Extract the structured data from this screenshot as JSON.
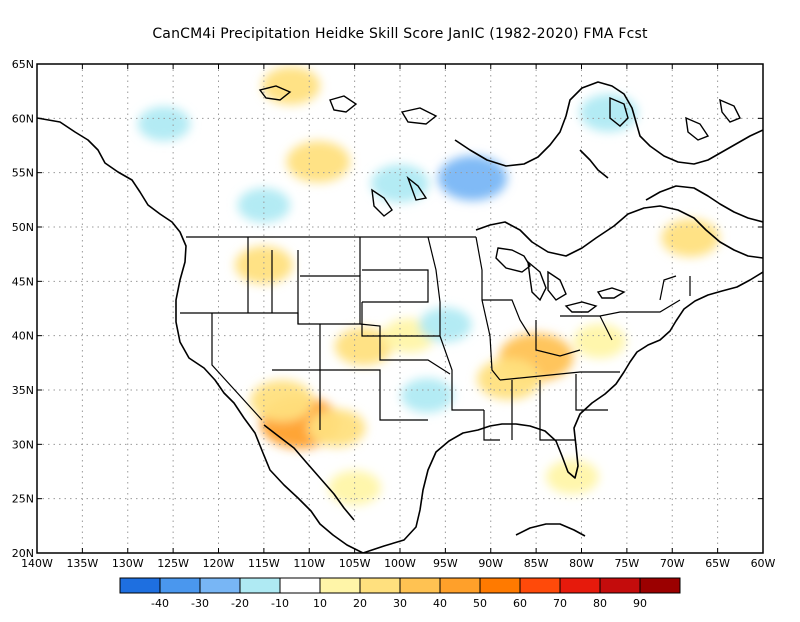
{
  "title": "CanCM4i  Precipitation Heidke Skill Score JanIC (1982-2020) FMA Fcst",
  "map": {
    "lat_range": [
      20,
      65
    ],
    "lon_range": [
      -140,
      -60
    ],
    "lat_ticks": [
      {
        "value": 65,
        "label": "65N"
      },
      {
        "value": 60,
        "label": "60N"
      },
      {
        "value": 55,
        "label": "55N"
      },
      {
        "value": 50,
        "label": "50N"
      },
      {
        "value": 45,
        "label": "45N"
      },
      {
        "value": 40,
        "label": "40N"
      },
      {
        "value": 35,
        "label": "35N"
      },
      {
        "value": 30,
        "label": "30N"
      },
      {
        "value": 25,
        "label": "25N"
      },
      {
        "value": 20,
        "label": "20N"
      }
    ],
    "lon_ticks": [
      {
        "value": -140,
        "label": "140W"
      },
      {
        "value": -135,
        "label": "135W"
      },
      {
        "value": -130,
        "label": "130W"
      },
      {
        "value": -125,
        "label": "125W"
      },
      {
        "value": -120,
        "label": "120W"
      },
      {
        "value": -115,
        "label": "115W"
      },
      {
        "value": -110,
        "label": "110W"
      },
      {
        "value": -105,
        "label": "105W"
      },
      {
        "value": -100,
        "label": "100W"
      },
      {
        "value": -95,
        "label": "95W"
      },
      {
        "value": -90,
        "label": "90W"
      },
      {
        "value": -85,
        "label": "85W"
      },
      {
        "value": -80,
        "label": "80W"
      },
      {
        "value": -75,
        "label": "75W"
      },
      {
        "value": -70,
        "label": "70W"
      },
      {
        "value": -65,
        "label": "65W"
      },
      {
        "value": -60,
        "label": "60W"
      }
    ],
    "grid": "dotted"
  },
  "colorbar": {
    "bins": [
      {
        "color": "#1e6fe0"
      },
      {
        "color": "#4a97ee"
      },
      {
        "color": "#78b6f5"
      },
      {
        "color": "#afeaf3"
      },
      {
        "color": "#ffffff"
      },
      {
        "color": "#fff5a8"
      },
      {
        "color": "#ffe07e"
      },
      {
        "color": "#ffc252"
      },
      {
        "color": "#ffa02a"
      },
      {
        "color": "#ff7a00"
      },
      {
        "color": "#ff4a0a"
      },
      {
        "color": "#e61a0c"
      },
      {
        "color": "#c40c0c"
      },
      {
        "color": "#9b0000"
      }
    ],
    "labels": [
      "-40",
      "-30",
      "-20",
      "-10",
      "10",
      "20",
      "30",
      "40",
      "50",
      "60",
      "70",
      "80",
      "90"
    ]
  },
  "skill_regions": [
    {
      "name": "desert-southwest",
      "lon": -111,
      "lat": 32,
      "value": 40
    },
    {
      "name": "southern-arizona",
      "lon": -113,
      "lat": 34,
      "value": 25
    },
    {
      "name": "new-mexico",
      "lon": -107,
      "lat": 31.5,
      "value": 20
    },
    {
      "name": "ohio-valley",
      "lon": -85,
      "lat": 38,
      "value": 35
    },
    {
      "name": "tennessee",
      "lon": -88,
      "lat": 36,
      "value": 25
    },
    {
      "name": "mid-atlantic",
      "lon": -78,
      "lat": 39.5,
      "value": 15
    },
    {
      "name": "colorado",
      "lon": -104,
      "lat": 39,
      "value": 20
    },
    {
      "name": "kansas",
      "lon": -99,
      "lat": 40,
      "value": 15
    },
    {
      "name": "northern-rockies",
      "lon": -115,
      "lat": 46.5,
      "value": 20
    },
    {
      "name": "florida",
      "lon": -81,
      "lat": 27,
      "value": 15
    },
    {
      "name": "northern-mexico",
      "lon": -105,
      "lat": 26,
      "value": 15
    },
    {
      "name": "yukon",
      "lon": -112,
      "lat": 63,
      "value": 20
    },
    {
      "name": "alberta",
      "lon": -109,
      "lat": 56,
      "value": 25
    },
    {
      "name": "quebec",
      "lon": -68,
      "lat": 49,
      "value": 20
    },
    {
      "name": "upper-midwest",
      "lon": -95,
      "lat": 41,
      "value": -15
    },
    {
      "name": "texas",
      "lon": -97,
      "lat": 34.5,
      "value": -15
    },
    {
      "name": "hudson-bay",
      "lon": -77,
      "lat": 60.5,
      "value": -20
    },
    {
      "name": "saskatchewan",
      "lon": -100,
      "lat": 54,
      "value": -20
    },
    {
      "name": "manitoba",
      "lon": -92,
      "lat": 54.5,
      "value": -30
    },
    {
      "name": "british-columbia",
      "lon": -115,
      "lat": 52,
      "value": -15
    },
    {
      "name": "alaska-gulf",
      "lon": -126,
      "lat": 59.5,
      "value": -15
    },
    {
      "name": "nevada-utah",
      "lon": -117,
      "lat": 41.5,
      "value": -10
    }
  ]
}
